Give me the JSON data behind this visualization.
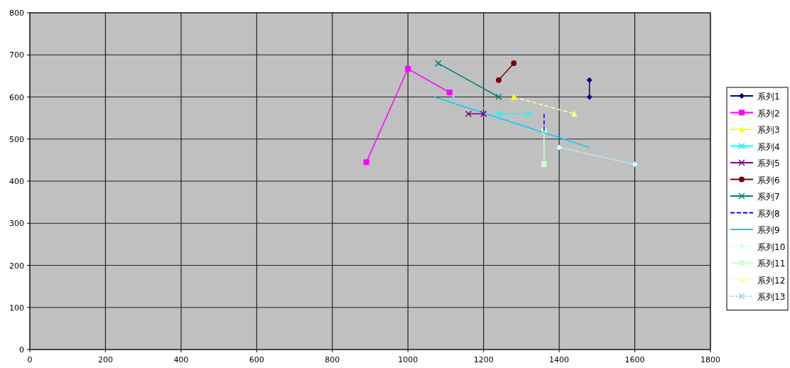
{
  "chart_data": {
    "type": "line",
    "xlim": [
      0,
      1800
    ],
    "xticks": [
      0,
      200,
      400,
      600,
      800,
      1000,
      1200,
      1400,
      1600,
      1800
    ],
    "ylim": [
      0,
      800
    ],
    "yticks": [
      0,
      100,
      200,
      300,
      400,
      500,
      600,
      700,
      800
    ],
    "grid": true,
    "legend": "right",
    "series": [
      {
        "name": "系列1",
        "color": "#000080",
        "marker": "diamond",
        "line_style": "solid",
        "x": [
          1480,
          1480
        ],
        "values": [
          640,
          600
        ]
      },
      {
        "name": "系列2",
        "color": "#ff00ff",
        "marker": "square",
        "line_style": "solid",
        "x": [
          890,
          1000,
          1110
        ],
        "values": [
          445,
          667,
          611
        ]
      },
      {
        "name": "系列3",
        "color": "#ffff00",
        "marker": "triangle",
        "line_style": "solid",
        "x": [
          1280
        ],
        "values": [
          600
        ]
      },
      {
        "name": "系列4",
        "color": "#00ffff",
        "marker": "cross",
        "line_style": "solid",
        "x": [
          1240,
          1320
        ],
        "values": [
          560,
          560
        ]
      },
      {
        "name": "系列5",
        "color": "#800080",
        "marker": "cross",
        "line_style": "solid",
        "x": [
          1160,
          1200
        ],
        "values": [
          560,
          560
        ]
      },
      {
        "name": "系列6",
        "color": "#800000",
        "marker": "circle",
        "line_style": "solid",
        "x": [
          1240,
          1280
        ],
        "values": [
          640,
          680
        ]
      },
      {
        "name": "系列7",
        "color": "#008080",
        "marker": "cross",
        "line_style": "solid",
        "x": [
          1080,
          1240
        ],
        "values": [
          680,
          600
        ]
      },
      {
        "name": "系列8",
        "color": "#0000ff",
        "marker": "none",
        "line_style": "dashed",
        "x": [
          1360,
          1360
        ],
        "values": [
          560,
          520
        ]
      },
      {
        "name": "系列9",
        "color": "#00ccff",
        "marker": "none",
        "line_style": "solid",
        "x": [
          1070,
          1480
        ],
        "values": [
          600,
          480
        ]
      },
      {
        "name": "系列10",
        "color": "#ccffff",
        "marker": "diamond",
        "line_style": "dotted",
        "x": [
          1400,
          1600
        ],
        "values": [
          480,
          440
        ]
      },
      {
        "name": "系列11",
        "color": "#ccffcc",
        "marker": "square",
        "line_style": "solid",
        "x": [
          1360,
          1360
        ],
        "values": [
          520,
          440
        ]
      },
      {
        "name": "系列12",
        "color": "#ffff99",
        "marker": "triangle",
        "line_style": "dashed",
        "x": [
          1280,
          1440
        ],
        "values": [
          600,
          560
        ]
      },
      {
        "name": "系列13",
        "color": "#99ccff",
        "marker": "cross",
        "line_style": "dotted",
        "x": [
          1120,
          1600
        ],
        "values": [
          600,
          440
        ]
      }
    ]
  }
}
